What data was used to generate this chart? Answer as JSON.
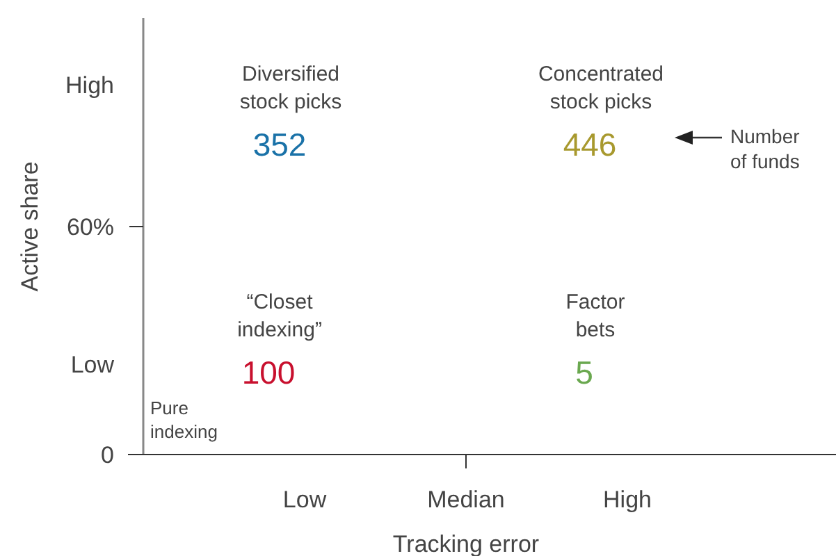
{
  "chart_data": {
    "type": "other",
    "xlabel": "Tracking error",
    "ylabel": "Active share",
    "categories": [
      "Diversified stock picks",
      "Concentrated stock picks",
      "“Closet indexing”",
      "Factor bets"
    ],
    "values": [
      352,
      446,
      100,
      5
    ],
    "data_labels": true,
    "colors": [
      "#1a72a8",
      "#a8992e",
      "#c8102e",
      "#6aa84f"
    ],
    "annotations": [
      "Pure indexing",
      "Number of funds",
      "High",
      "60%",
      "Low",
      "0",
      "Low",
      "Median",
      "High"
    ]
  }
}
